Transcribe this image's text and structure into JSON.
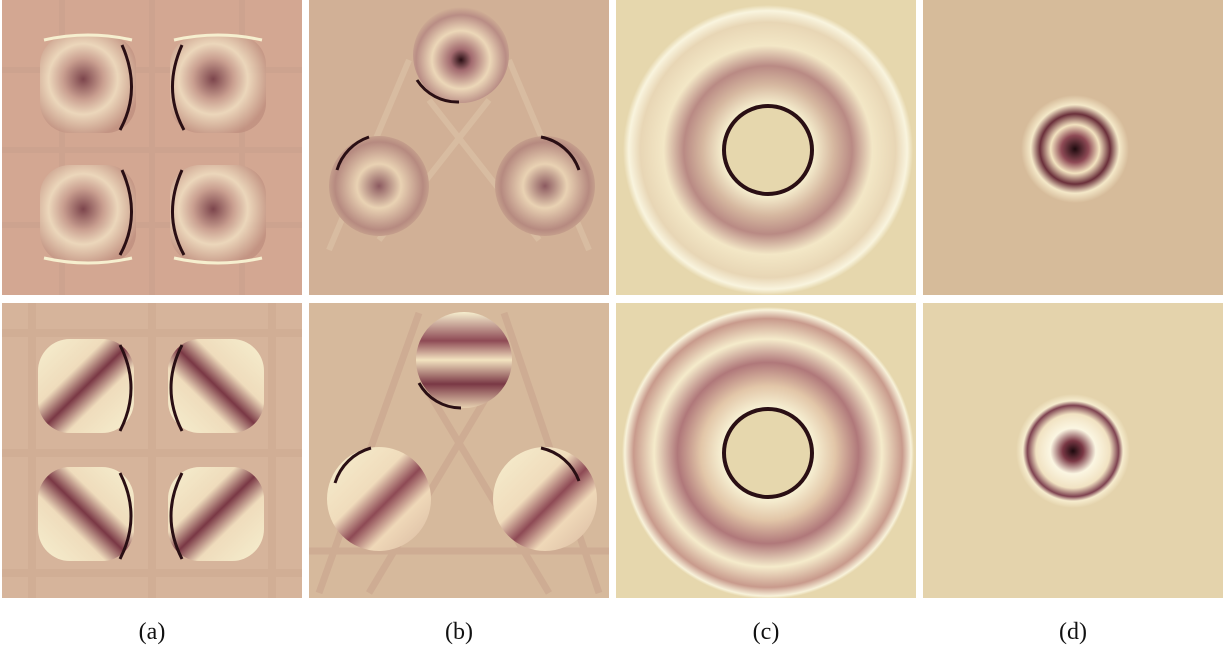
{
  "figure": {
    "captions": [
      "(a)",
      "(b)",
      "(c)",
      "(d)"
    ]
  },
  "colors": {
    "bg_a": "#d3a792",
    "bg_b": "#d1b096",
    "bg_c": "#e6d7ad",
    "bg_d": "#d6bb9a",
    "cream": "#f6efcf",
    "dark": "#2a0f14",
    "wine": "#8e4a55",
    "rose": "#b8857d"
  }
}
